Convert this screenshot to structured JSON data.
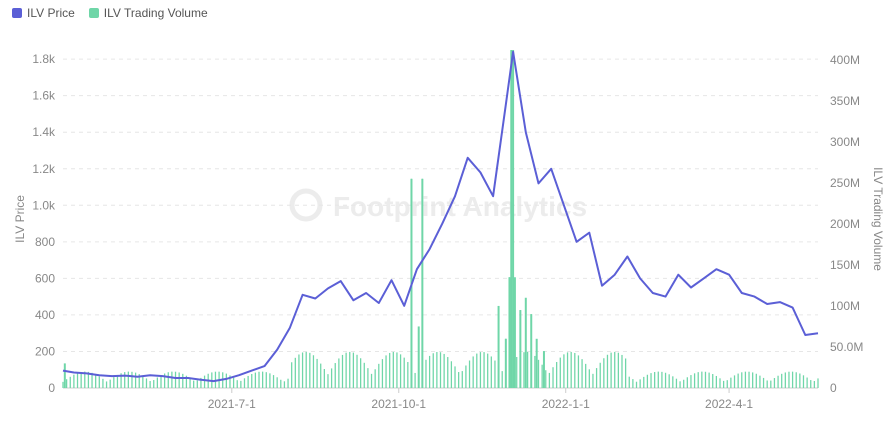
{
  "legend": {
    "price_label": "ILV Price",
    "volume_label": "ILV Trading Volume"
  },
  "watermark": "Footprint Analytics",
  "colors": {
    "price": "#5b5fd6",
    "volume": "#6fd6a8",
    "grid": "#e6e6e6",
    "axis_text": "#888888"
  },
  "chart_data": {
    "type": "line",
    "title": "",
    "xlabel": "",
    "ylabel": "ILV Price",
    "y2label": "ILV Trading Volume",
    "x_start": "2021-03-30",
    "x_end": "2022-05-20",
    "x_ticks": [
      {
        "label": "2021-7-1",
        "date": "2021-07-01"
      },
      {
        "label": "2021-10-1",
        "date": "2021-10-01"
      },
      {
        "label": "2022-1-1",
        "date": "2022-01-01"
      },
      {
        "label": "2022-4-1",
        "date": "2022-04-01"
      }
    ],
    "ylim": [
      0,
      1850
    ],
    "y_ticks": [
      {
        "label": "0",
        "v": 0
      },
      {
        "label": "200",
        "v": 200
      },
      {
        "label": "400",
        "v": 400
      },
      {
        "label": "600",
        "v": 600
      },
      {
        "label": "800",
        "v": 800
      },
      {
        "label": "1.0k",
        "v": 1000
      },
      {
        "label": "1.2k",
        "v": 1200
      },
      {
        "label": "1.4k",
        "v": 1400
      },
      {
        "label": "1.6k",
        "v": 1600
      },
      {
        "label": "1.8k",
        "v": 1800
      }
    ],
    "y2lim": [
      0,
      412000000
    ],
    "y2_ticks": [
      {
        "label": "0",
        "v": 0
      },
      {
        "label": "50.0M",
        "v": 50000000
      },
      {
        "label": "100M",
        "v": 100000000
      },
      {
        "label": "150M",
        "v": 150000000
      },
      {
        "label": "200M",
        "v": 200000000
      },
      {
        "label": "250M",
        "v": 250000000
      },
      {
        "label": "300M",
        "v": 300000000
      },
      {
        "label": "350M",
        "v": 350000000
      },
      {
        "label": "400M",
        "v": 400000000
      }
    ],
    "series": [
      {
        "name": "ILV Price",
        "axis": "left",
        "points": [
          [
            "2021-03-30",
            95
          ],
          [
            "2021-04-05",
            85
          ],
          [
            "2021-04-12",
            80
          ],
          [
            "2021-04-19",
            70
          ],
          [
            "2021-04-26",
            65
          ],
          [
            "2021-05-03",
            68
          ],
          [
            "2021-05-10",
            62
          ],
          [
            "2021-05-17",
            70
          ],
          [
            "2021-05-24",
            65
          ],
          [
            "2021-05-31",
            55
          ],
          [
            "2021-06-07",
            55
          ],
          [
            "2021-06-14",
            45
          ],
          [
            "2021-06-21",
            38
          ],
          [
            "2021-06-28",
            50
          ],
          [
            "2021-07-05",
            70
          ],
          [
            "2021-07-12",
            95
          ],
          [
            "2021-07-19",
            120
          ],
          [
            "2021-07-26",
            210
          ],
          [
            "2021-08-02",
            330
          ],
          [
            "2021-08-09",
            510
          ],
          [
            "2021-08-16",
            490
          ],
          [
            "2021-08-23",
            545
          ],
          [
            "2021-08-30",
            585
          ],
          [
            "2021-09-06",
            480
          ],
          [
            "2021-09-13",
            520
          ],
          [
            "2021-09-20",
            465
          ],
          [
            "2021-09-27",
            590
          ],
          [
            "2021-10-04",
            450
          ],
          [
            "2021-10-11",
            650
          ],
          [
            "2021-10-18",
            760
          ],
          [
            "2021-10-25",
            900
          ],
          [
            "2021-11-01",
            1050
          ],
          [
            "2021-11-08",
            1260
          ],
          [
            "2021-11-15",
            1180
          ],
          [
            "2021-11-22",
            1050
          ],
          [
            "2021-11-29",
            1550
          ],
          [
            "2021-12-03",
            1840
          ],
          [
            "2021-12-10",
            1400
          ],
          [
            "2021-12-17",
            1120
          ],
          [
            "2021-12-24",
            1200
          ],
          [
            "2021-12-31",
            1000
          ],
          [
            "2022-01-07",
            800
          ],
          [
            "2022-01-14",
            850
          ],
          [
            "2022-01-21",
            560
          ],
          [
            "2022-01-28",
            620
          ],
          [
            "2022-02-04",
            720
          ],
          [
            "2022-02-11",
            600
          ],
          [
            "2022-02-18",
            520
          ],
          [
            "2022-02-25",
            500
          ],
          [
            "2022-03-04",
            620
          ],
          [
            "2022-03-11",
            550
          ],
          [
            "2022-03-18",
            600
          ],
          [
            "2022-03-25",
            650
          ],
          [
            "2022-04-01",
            620
          ],
          [
            "2022-04-08",
            520
          ],
          [
            "2022-04-15",
            500
          ],
          [
            "2022-04-22",
            460
          ],
          [
            "2022-04-29",
            470
          ],
          [
            "2022-05-06",
            440
          ],
          [
            "2022-05-13",
            290
          ],
          [
            "2022-05-20",
            300
          ]
        ]
      },
      {
        "name": "ILV Trading Volume",
        "axis": "right",
        "type": "bar",
        "baseline": 25000000,
        "spikes": [
          [
            "2021-03-31",
            30000000
          ],
          [
            "2021-10-08",
            255000000
          ],
          [
            "2021-10-14",
            255000000
          ],
          [
            "2021-10-12",
            75000000
          ],
          [
            "2021-11-25",
            100000000
          ],
          [
            "2021-12-02",
            412000000
          ],
          [
            "2021-12-03",
            412000000
          ],
          [
            "2021-12-01",
            135000000
          ],
          [
            "2021-12-04",
            135000000
          ],
          [
            "2021-11-29",
            60000000
          ],
          [
            "2021-12-07",
            95000000
          ],
          [
            "2021-12-10",
            110000000
          ],
          [
            "2021-12-13",
            90000000
          ],
          [
            "2021-12-16",
            60000000
          ],
          [
            "2021-12-20",
            45000000
          ]
        ]
      }
    ],
    "grid": true,
    "legend_position": "top-left"
  }
}
